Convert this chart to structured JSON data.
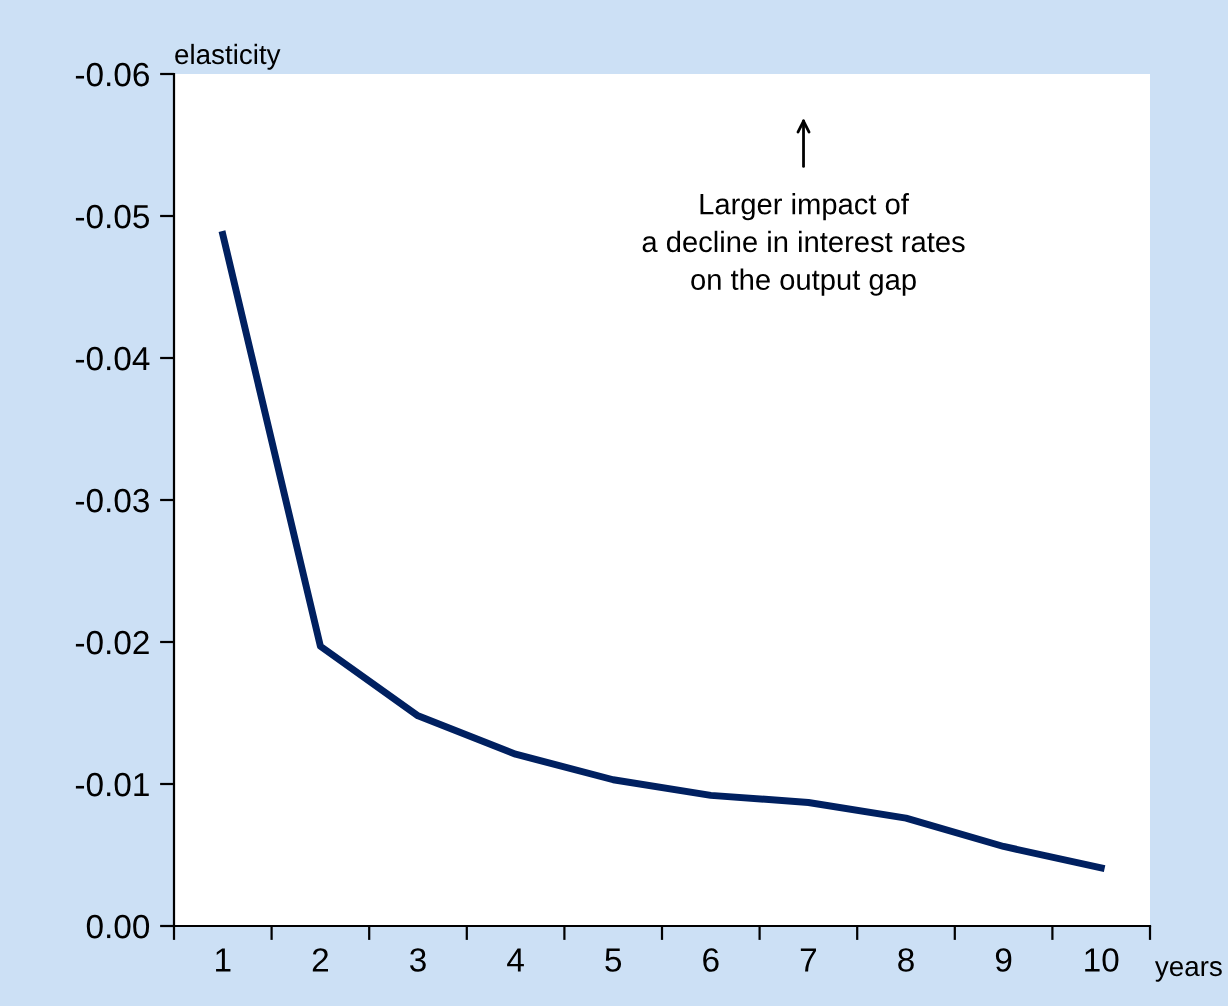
{
  "chart_data": {
    "type": "line",
    "ylabel": "elasticity",
    "xlabel": "years",
    "categories": [
      "1",
      "2",
      "3",
      "4",
      "5",
      "6",
      "7",
      "8",
      "9",
      "10"
    ],
    "series": [
      {
        "color": "#002060",
        "values": [
          -0.0487,
          -0.0197,
          -0.0148,
          -0.0121,
          -0.0103,
          -0.0092,
          -0.0087,
          -0.0076,
          -0.0056,
          -0.0041
        ]
      }
    ],
    "ylim": [
      0.0,
      -0.06
    ],
    "yticks": [
      {
        "value": 0,
        "label": "0.00"
      },
      -0.01,
      -0.02,
      -0.03,
      -0.04,
      -0.05,
      -0.06
    ],
    "annotations": [
      "Larger impact of\na decline in interest rates\non the output gap"
    ],
    "grid": false,
    "legend": false,
    "marker": "none",
    "line_style": "solid"
  }
}
